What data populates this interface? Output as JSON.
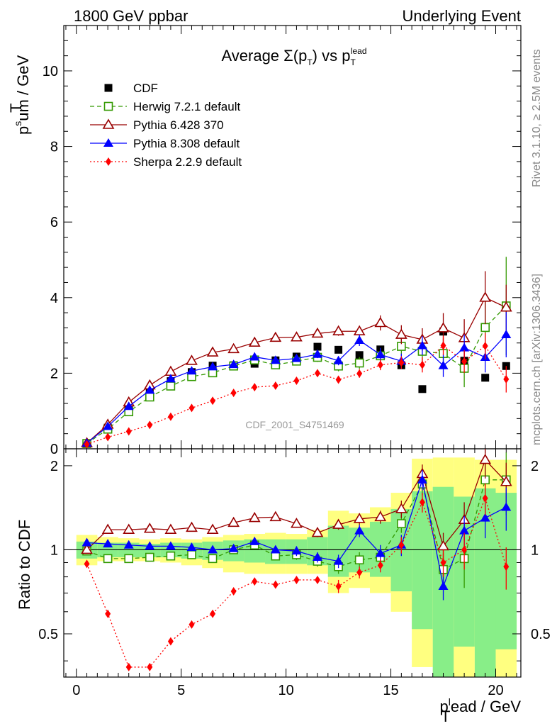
{
  "header": {
    "left": "1800 GeV ppbar",
    "right": "Underlying Event"
  },
  "side_labels": {
    "top": "Rivet 3.1.10, ≥ 2.5M events",
    "bottom": "mcplots.cern.ch [arXiv:1306.3436]"
  },
  "watermark": "CDF_2001_S4751469",
  "chart_data": [
    {
      "type": "scatter",
      "title": "Average Σ(pT) vs pT^lead",
      "ylabel": "pT^sum / GeV",
      "xlabel": "pT^lead / GeV",
      "xlim": [
        -0.6,
        21.2
      ],
      "ylim": [
        0,
        11.2
      ],
      "yticks": [
        0,
        2,
        4,
        6,
        8,
        10
      ],
      "xticks": [
        0,
        5,
        10,
        15,
        20
      ],
      "legend_position": "top-left",
      "x": [
        0.5,
        1.5,
        2.5,
        3.5,
        4.5,
        5.5,
        6.5,
        7.5,
        8.5,
        9.5,
        10.5,
        11.5,
        12.5,
        13.5,
        14.5,
        15.5,
        16.5,
        17.5,
        18.5,
        19.5,
        20.5
      ],
      "series": [
        {
          "name": "CDF",
          "color": "#000000",
          "marker": "square",
          "dash": "none",
          "values": [
            0.14,
            0.56,
            1.08,
            1.49,
            1.79,
            2.03,
            2.2,
            2.21,
            2.25,
            2.34,
            2.44,
            2.7,
            2.62,
            2.48,
            2.63,
            2.21,
            1.58,
            3.1,
            2.33,
            1.88,
            2.19
          ],
          "err": [
            0,
            0,
            0,
            0,
            0,
            0,
            0,
            0,
            0,
            0,
            0,
            0,
            0,
            0,
            0,
            0,
            0,
            0,
            0,
            0,
            0
          ]
        },
        {
          "name": "Herwig 7.2.1 default",
          "color": "#339900",
          "marker": "square-open",
          "dash": "6,4",
          "values": [
            0.14,
            0.52,
            0.98,
            1.37,
            1.66,
            1.91,
            2.01,
            2.19,
            2.35,
            2.22,
            2.32,
            2.42,
            2.19,
            2.27,
            2.46,
            2.71,
            2.58,
            2.52,
            2.13,
            3.21,
            3.78
          ],
          "err": [
            0.02,
            0.02,
            0.02,
            0.03,
            0.03,
            0.04,
            0.05,
            0.06,
            0.07,
            0.08,
            0.1,
            0.12,
            0.14,
            0.16,
            0.2,
            0.25,
            0.3,
            0.4,
            0.5,
            0.8,
            1.3
          ]
        },
        {
          "name": "Pythia 6.428 370",
          "color": "#990000",
          "marker": "triangle-open",
          "dash": "none",
          "values": [
            0.15,
            0.64,
            1.23,
            1.68,
            2.04,
            2.33,
            2.55,
            2.64,
            2.81,
            2.94,
            2.95,
            3.05,
            3.11,
            3.11,
            3.33,
            3.02,
            2.89,
            3.19,
            2.93,
            4.0,
            3.74
          ],
          "err": [
            0.02,
            0.02,
            0.03,
            0.03,
            0.04,
            0.04,
            0.05,
            0.06,
            0.06,
            0.07,
            0.08,
            0.1,
            0.12,
            0.14,
            0.2,
            0.25,
            0.3,
            0.4,
            0.5,
            0.7,
            0.6
          ]
        },
        {
          "name": "Pythia 8.308 default",
          "color": "#0000ff",
          "marker": "triangle",
          "dash": "none",
          "values": [
            0.15,
            0.59,
            1.12,
            1.55,
            1.85,
            2.06,
            2.17,
            2.23,
            2.43,
            2.34,
            2.39,
            2.5,
            2.33,
            2.87,
            2.49,
            2.32,
            2.73,
            2.2,
            2.67,
            2.42,
            3.02
          ],
          "err": [
            0.02,
            0.02,
            0.02,
            0.03,
            0.03,
            0.04,
            0.05,
            0.05,
            0.06,
            0.07,
            0.08,
            0.1,
            0.12,
            0.15,
            0.18,
            0.2,
            0.25,
            0.3,
            0.35,
            0.4,
            0.6
          ]
        },
        {
          "name": "Sherpa 2.2.9 default",
          "color": "#ff0000",
          "marker": "diamond",
          "dash": "2,3",
          "values": [
            0.12,
            0.31,
            0.46,
            0.63,
            0.85,
            1.08,
            1.27,
            1.48,
            1.63,
            1.67,
            1.8,
            2.0,
            1.83,
            1.99,
            2.22,
            2.28,
            2.22,
            2.73,
            2.31,
            2.72,
            1.84
          ],
          "err": [
            0.01,
            0.01,
            0.02,
            0.02,
            0.02,
            0.03,
            0.03,
            0.04,
            0.05,
            0.05,
            0.06,
            0.08,
            0.09,
            0.11,
            0.14,
            0.17,
            0.2,
            0.25,
            0.3,
            0.35,
            0.35
          ]
        }
      ]
    },
    {
      "type": "scatter",
      "title": "",
      "ylabel": "Ratio to CDF",
      "xlabel": "pT^lead / GeV",
      "xlim": [
        -0.6,
        21.2
      ],
      "ylim": [
        0.35,
        2.3
      ],
      "yticks": [
        0.5,
        1,
        2
      ],
      "log_y": true,
      "band_yellow": [
        [
          0.88,
          1.13
        ],
        [
          0.91,
          1.11
        ],
        [
          0.91,
          1.1
        ],
        [
          0.91,
          1.09
        ],
        [
          0.9,
          1.1
        ],
        [
          0.88,
          1.09
        ],
        [
          0.86,
          1.11
        ],
        [
          0.83,
          1.13
        ],
        [
          0.82,
          1.14
        ],
        [
          0.82,
          1.15
        ],
        [
          0.82,
          1.14
        ],
        [
          0.82,
          1.18
        ],
        [
          0.7,
          1.38
        ],
        [
          0.73,
          1.35
        ],
        [
          0.7,
          1.42
        ],
        [
          0.6,
          1.6
        ],
        [
          0.38,
          2.12
        ],
        [
          0.34,
          2.14
        ],
        [
          0.34,
          2.14
        ],
        [
          0.34,
          2.1
        ],
        [
          0.34,
          2.1
        ]
      ],
      "band_green": [
        [
          0.93,
          1.07
        ],
        [
          0.94,
          1.06
        ],
        [
          0.94,
          1.06
        ],
        [
          0.94,
          1.05
        ],
        [
          0.94,
          1.06
        ],
        [
          0.93,
          1.06
        ],
        [
          0.92,
          1.07
        ],
        [
          0.91,
          1.08
        ],
        [
          0.9,
          1.09
        ],
        [
          0.89,
          1.09
        ],
        [
          0.89,
          1.09
        ],
        [
          0.88,
          1.11
        ],
        [
          0.8,
          1.22
        ],
        [
          0.83,
          1.2
        ],
        [
          0.8,
          1.26
        ],
        [
          0.71,
          1.4
        ],
        [
          0.52,
          1.62
        ],
        [
          0.34,
          1.68
        ],
        [
          0.45,
          1.55
        ],
        [
          0.34,
          1.66
        ],
        [
          0.44,
          1.6
        ]
      ],
      "x": [
        0.5,
        1.5,
        2.5,
        3.5,
        4.5,
        5.5,
        6.5,
        7.5,
        8.5,
        9.5,
        10.5,
        11.5,
        12.5,
        13.5,
        14.5,
        15.5,
        16.5,
        17.5,
        18.5,
        19.5,
        20.5
      ],
      "series": [
        {
          "name": "Herwig 7.2.1 default",
          "color": "#339900",
          "marker": "square-open",
          "dash": "6,4",
          "values": [
            0.99,
            0.93,
            0.93,
            0.94,
            0.95,
            0.96,
            0.93,
            1.0,
            1.04,
            0.95,
            0.96,
            0.91,
            0.87,
            0.92,
            0.94,
            1.24,
            1.72,
            0.85,
            0.93,
            1.78,
            1.78
          ],
          "err": [
            0.02,
            0.02,
            0.02,
            0.02,
            0.02,
            0.02,
            0.02,
            0.03,
            0.03,
            0.03,
            0.04,
            0.04,
            0.05,
            0.06,
            0.06,
            0.09,
            0.15,
            0.12,
            0.2,
            0.25,
            0.45
          ]
        },
        {
          "name": "Pythia 6.428 370",
          "color": "#990000",
          "marker": "triangle-open",
          "dash": "none",
          "values": [
            1.0,
            1.18,
            1.18,
            1.19,
            1.18,
            1.2,
            1.18,
            1.25,
            1.3,
            1.31,
            1.24,
            1.15,
            1.23,
            1.29,
            1.31,
            1.4,
            1.87,
            1.03,
            1.28,
            2.1,
            1.75
          ],
          "err": [
            0.02,
            0.02,
            0.02,
            0.02,
            0.02,
            0.02,
            0.02,
            0.03,
            0.03,
            0.03,
            0.04,
            0.04,
            0.05,
            0.06,
            0.07,
            0.1,
            0.15,
            0.12,
            0.2,
            0.3,
            0.3
          ]
        },
        {
          "name": "Pythia 8.308 default",
          "color": "#0000ff",
          "marker": "triangle",
          "dash": "none",
          "values": [
            1.06,
            1.05,
            1.04,
            1.03,
            1.03,
            1.02,
            1.0,
            1.01,
            1.07,
            1.0,
            0.99,
            0.94,
            0.91,
            1.17,
            0.97,
            1.04,
            1.78,
            0.74,
            1.17,
            1.3,
            1.42
          ],
          "err": [
            0.02,
            0.02,
            0.02,
            0.02,
            0.02,
            0.02,
            0.02,
            0.03,
            0.03,
            0.03,
            0.04,
            0.04,
            0.05,
            0.06,
            0.07,
            0.09,
            0.15,
            0.08,
            0.15,
            0.2,
            0.25
          ]
        },
        {
          "name": "Sherpa 2.2.9 default",
          "color": "#ff0000",
          "marker": "diamond",
          "dash": "2,3",
          "values": [
            0.89,
            0.59,
            0.38,
            0.38,
            0.47,
            0.54,
            0.59,
            0.71,
            0.77,
            0.75,
            0.78,
            0.78,
            0.74,
            0.83,
            0.88,
            1.04,
            1.48,
            0.9,
            1.0,
            1.53,
            0.87
          ],
          "err": [
            0.01,
            0.01,
            0.01,
            0.01,
            0.01,
            0.02,
            0.02,
            0.02,
            0.02,
            0.03,
            0.03,
            0.03,
            0.04,
            0.04,
            0.05,
            0.07,
            0.12,
            0.1,
            0.15,
            0.2,
            0.15
          ]
        }
      ]
    }
  ]
}
